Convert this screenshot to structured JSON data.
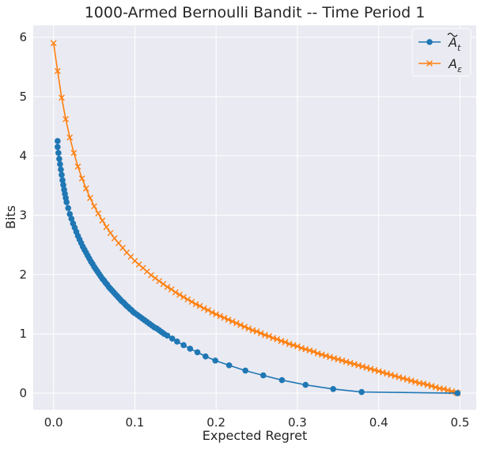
{
  "chart_data": {
    "type": "line",
    "title": "1000-Armed Bernoulli Bandit -- Time Period 1",
    "xlabel": "Expected Regret",
    "ylabel": "Bits",
    "xlim": [
      -0.025,
      0.52
    ],
    "ylim": [
      -0.28,
      6.2
    ],
    "xticks": [
      0.0,
      0.1,
      0.2,
      0.3,
      0.4,
      0.5
    ],
    "xtick_labels": [
      "0.0",
      "0.1",
      "0.2",
      "0.3",
      "0.4",
      "0.5"
    ],
    "yticks": [
      0,
      1,
      2,
      3,
      4,
      5,
      6
    ],
    "ytick_labels": [
      "0",
      "1",
      "2",
      "3",
      "4",
      "5",
      "6"
    ],
    "grid": true,
    "background": "#eaeaf2",
    "legend_position": "top-right",
    "series": [
      {
        "name": "Ã_t",
        "legend_base": "A",
        "legend_sub": "t",
        "legend_tilde": true,
        "color": "#1f77b4",
        "marker": "circle",
        "x": [
          0.005,
          0.005,
          0.006,
          0.007,
          0.008,
          0.009,
          0.01,
          0.011,
          0.012,
          0.013,
          0.014,
          0.015,
          0.016,
          0.018,
          0.02,
          0.022,
          0.024,
          0.026,
          0.028,
          0.03,
          0.032,
          0.034,
          0.036,
          0.038,
          0.04,
          0.042,
          0.044,
          0.046,
          0.048,
          0.05,
          0.052,
          0.054,
          0.056,
          0.058,
          0.06,
          0.062,
          0.064,
          0.066,
          0.068,
          0.07,
          0.072,
          0.074,
          0.076,
          0.078,
          0.08,
          0.082,
          0.084,
          0.086,
          0.088,
          0.09,
          0.092,
          0.094,
          0.096,
          0.098,
          0.1,
          0.103,
          0.106,
          0.109,
          0.112,
          0.115,
          0.118,
          0.121,
          0.124,
          0.127,
          0.13,
          0.133,
          0.136,
          0.14,
          0.146,
          0.152,
          0.16,
          0.168,
          0.177,
          0.187,
          0.199,
          0.216,
          0.236,
          0.258,
          0.281,
          0.31,
          0.344,
          0.379,
          0.497
        ],
        "y": [
          4.25,
          4.15,
          4.05,
          3.95,
          3.86,
          3.77,
          3.68,
          3.59,
          3.51,
          3.43,
          3.36,
          3.29,
          3.22,
          3.12,
          3.02,
          2.94,
          2.86,
          2.79,
          2.72,
          2.65,
          2.59,
          2.53,
          2.47,
          2.42,
          2.37,
          2.32,
          2.27,
          2.22,
          2.18,
          2.13,
          2.09,
          2.05,
          2.01,
          1.97,
          1.93,
          1.9,
          1.86,
          1.83,
          1.79,
          1.76,
          1.73,
          1.7,
          1.67,
          1.64,
          1.61,
          1.58,
          1.55,
          1.53,
          1.5,
          1.47,
          1.45,
          1.42,
          1.4,
          1.37,
          1.35,
          1.32,
          1.29,
          1.26,
          1.23,
          1.2,
          1.17,
          1.14,
          1.11,
          1.09,
          1.06,
          1.03,
          1.0,
          0.97,
          0.92,
          0.87,
          0.81,
          0.75,
          0.69,
          0.62,
          0.55,
          0.47,
          0.38,
          0.3,
          0.22,
          0.14,
          0.07,
          0.02,
          0.0
        ]
      },
      {
        "name": "A_ε",
        "legend_base": "A",
        "legend_sub": "ε",
        "legend_tilde": false,
        "color": "#ff7f0e",
        "marker": "x",
        "x": [
          0.0,
          0.005,
          0.01,
          0.015,
          0.02,
          0.025,
          0.03,
          0.035,
          0.04,
          0.045,
          0.05,
          0.055,
          0.06,
          0.065,
          0.07,
          0.075,
          0.08,
          0.085,
          0.09,
          0.095,
          0.1,
          0.105,
          0.11,
          0.115,
          0.12,
          0.125,
          0.13,
          0.135,
          0.14,
          0.145,
          0.15,
          0.155,
          0.16,
          0.165,
          0.17,
          0.175,
          0.18,
          0.185,
          0.19,
          0.195,
          0.2,
          0.205,
          0.21,
          0.215,
          0.22,
          0.225,
          0.23,
          0.235,
          0.24,
          0.245,
          0.25,
          0.255,
          0.26,
          0.265,
          0.27,
          0.275,
          0.28,
          0.285,
          0.29,
          0.295,
          0.3,
          0.305,
          0.31,
          0.315,
          0.32,
          0.325,
          0.33,
          0.335,
          0.34,
          0.345,
          0.35,
          0.355,
          0.36,
          0.365,
          0.37,
          0.375,
          0.38,
          0.385,
          0.39,
          0.395,
          0.4,
          0.405,
          0.41,
          0.415,
          0.42,
          0.425,
          0.43,
          0.435,
          0.44,
          0.445,
          0.45,
          0.455,
          0.46,
          0.465,
          0.47,
          0.475,
          0.48,
          0.485,
          0.49,
          0.495,
          0.497
        ],
        "y": [
          5.9,
          5.43,
          4.98,
          4.62,
          4.31,
          4.05,
          3.82,
          3.62,
          3.45,
          3.29,
          3.15,
          3.03,
          2.91,
          2.8,
          2.7,
          2.61,
          2.53,
          2.45,
          2.37,
          2.3,
          2.23,
          2.17,
          2.11,
          2.05,
          1.99,
          1.94,
          1.89,
          1.84,
          1.79,
          1.75,
          1.7,
          1.66,
          1.62,
          1.58,
          1.54,
          1.5,
          1.47,
          1.43,
          1.4,
          1.36,
          1.33,
          1.3,
          1.27,
          1.24,
          1.21,
          1.18,
          1.15,
          1.12,
          1.09,
          1.06,
          1.04,
          1.01,
          0.98,
          0.96,
          0.93,
          0.91,
          0.88,
          0.86,
          0.83,
          0.81,
          0.79,
          0.76,
          0.74,
          0.72,
          0.7,
          0.67,
          0.65,
          0.63,
          0.61,
          0.59,
          0.57,
          0.55,
          0.53,
          0.51,
          0.49,
          0.47,
          0.45,
          0.43,
          0.41,
          0.39,
          0.37,
          0.35,
          0.33,
          0.31,
          0.29,
          0.27,
          0.25,
          0.23,
          0.21,
          0.19,
          0.17,
          0.16,
          0.14,
          0.12,
          0.1,
          0.08,
          0.07,
          0.05,
          0.03,
          0.015,
          0.0
        ]
      }
    ]
  }
}
